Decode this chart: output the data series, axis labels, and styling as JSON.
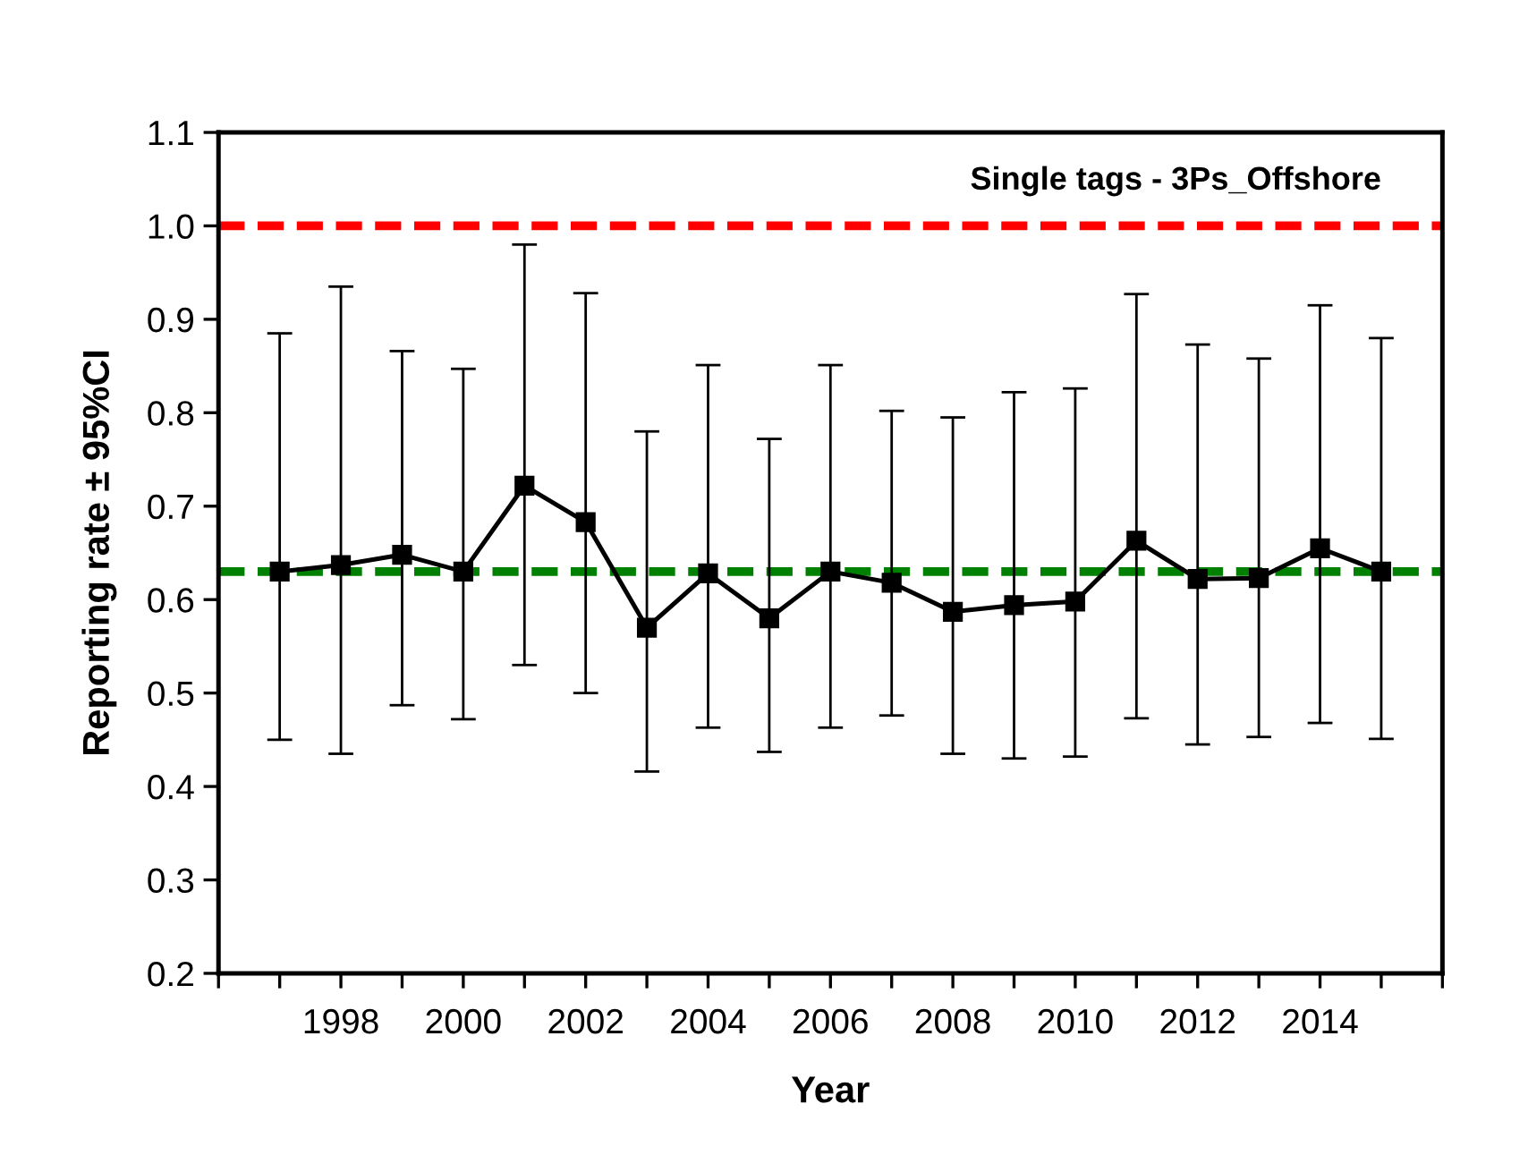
{
  "chart_data": {
    "type": "line",
    "title": "Single tags - 3Ps_Offshore",
    "xlabel": "Year",
    "ylabel": "Reporting rate ± 95%CI",
    "x": [
      1997,
      1998,
      1999,
      2000,
      2001,
      2002,
      2003,
      2004,
      2005,
      2006,
      2007,
      2008,
      2009,
      2010,
      2011,
      2012,
      2013,
      2014,
      2015
    ],
    "series": [
      {
        "color": "#000000",
        "values": [
          0.63,
          0.637,
          0.648,
          0.63,
          0.722,
          0.683,
          0.57,
          0.628,
          0.58,
          0.63,
          0.618,
          0.587,
          0.594,
          0.598,
          0.663,
          0.622,
          0.623,
          0.655,
          0.63
        ],
        "errors": [
          [
            0.45,
            0.885
          ],
          [
            0.435,
            0.935
          ],
          [
            0.487,
            0.866
          ],
          [
            0.472,
            0.847
          ],
          [
            0.53,
            0.98
          ],
          [
            0.5,
            0.928
          ],
          [
            0.416,
            0.78
          ],
          [
            0.463,
            0.851
          ],
          [
            0.437,
            0.772
          ],
          [
            0.463,
            0.851
          ],
          [
            0.476,
            0.802
          ],
          [
            0.435,
            0.795
          ],
          [
            0.43,
            0.822
          ],
          [
            0.432,
            0.826
          ],
          [
            0.473,
            0.927
          ],
          [
            0.445,
            0.873
          ],
          [
            0.453,
            0.858
          ],
          [
            0.468,
            0.915
          ],
          [
            0.451,
            0.88
          ]
        ]
      }
    ],
    "xlim": [
      1996,
      2016
    ],
    "xticks": [
      {
        "value": 1996,
        "label": null
      },
      {
        "value": 1997,
        "label": null
      },
      1998,
      {
        "value": 1999,
        "label": null
      },
      2000,
      {
        "value": 2001,
        "label": null
      },
      2002,
      {
        "value": 2003,
        "label": null
      },
      2004,
      {
        "value": 2005,
        "label": null
      },
      2006,
      {
        "value": 2007,
        "label": null
      },
      2008,
      {
        "value": 2009,
        "label": null
      },
      2010,
      {
        "value": 2011,
        "label": null
      },
      2012,
      {
        "value": 2013,
        "label": null
      },
      2014,
      {
        "value": 2015,
        "label": null
      },
      {
        "value": 2016,
        "label": null
      }
    ],
    "ylim": [
      0.2,
      1.1
    ],
    "yticks": [
      {
        "value": 0.2,
        "label": "0.2"
      },
      {
        "value": 0.3,
        "label": "0.3"
      },
      {
        "value": 0.4,
        "label": "0.4"
      },
      {
        "value": 0.5,
        "label": "0.5"
      },
      {
        "value": 0.6,
        "label": "0.6"
      },
      {
        "value": 0.7,
        "label": "0.7"
      },
      {
        "value": 0.8,
        "label": "0.8"
      },
      {
        "value": 0.9,
        "label": "0.9"
      },
      {
        "value": 1.0,
        "label": "1.0"
      },
      {
        "value": 1.1,
        "label": "1.1"
      }
    ],
    "ref_lines": [
      {
        "axis": "y",
        "value": 1.0,
        "color": "#ff0000",
        "line_style": "dashed"
      },
      {
        "axis": "y",
        "value": 0.63,
        "color": "#008000",
        "line_style": "dashed"
      }
    ],
    "marker": "square",
    "line_style": "solid",
    "grid": false,
    "legend": false
  }
}
